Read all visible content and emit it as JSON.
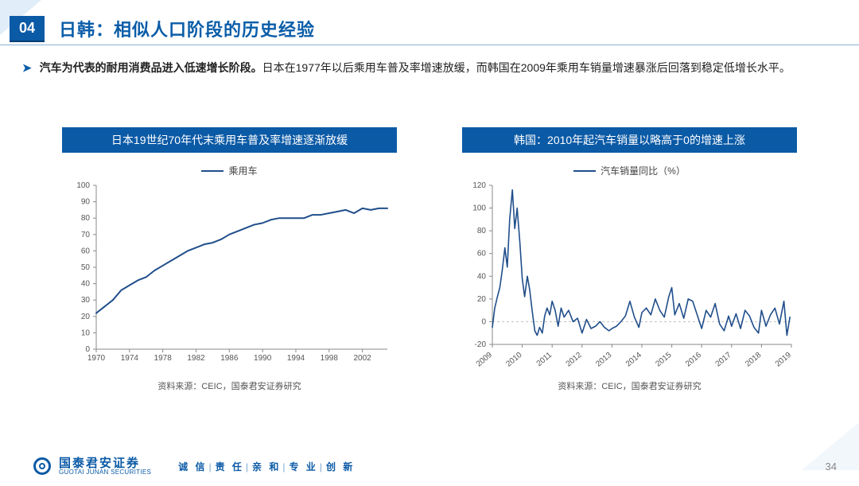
{
  "header": {
    "badge": "04",
    "title": "日韩：相似人口阶段的历史经验"
  },
  "lead": {
    "arrow": "➤",
    "bold": "汽车为代表的耐用消费品进入低速增长阶段。",
    "rest": "日本在1977年以后乘用车普及率增速放缓，而韩国在2009年乘用车销量增速暴涨后回落到稳定低增长水平。"
  },
  "chart_left": {
    "type": "line",
    "panel_title": "日本19世纪70年代末乘用车普及率增速逐渐放缓",
    "legend_label": "乘用车",
    "source": "资料来源：CEIC，国泰君安证券研究",
    "x_start": 1970,
    "x_end": 2005,
    "x_tick_step": 4,
    "y_start": 0,
    "y_end": 100,
    "y_tick_step": 10,
    "line_color": "#204e8b",
    "line_width": 2,
    "axis_color": "#888888",
    "grid": false,
    "tick_font_size": 10,
    "series": [
      {
        "x": 1970,
        "y": 22
      },
      {
        "x": 1971,
        "y": 26
      },
      {
        "x": 1972,
        "y": 30
      },
      {
        "x": 1973,
        "y": 36
      },
      {
        "x": 1974,
        "y": 39
      },
      {
        "x": 1975,
        "y": 42
      },
      {
        "x": 1976,
        "y": 44
      },
      {
        "x": 1977,
        "y": 48
      },
      {
        "x": 1978,
        "y": 51
      },
      {
        "x": 1979,
        "y": 54
      },
      {
        "x": 1980,
        "y": 57
      },
      {
        "x": 1981,
        "y": 60
      },
      {
        "x": 1982,
        "y": 62
      },
      {
        "x": 1983,
        "y": 64
      },
      {
        "x": 1984,
        "y": 65
      },
      {
        "x": 1985,
        "y": 67
      },
      {
        "x": 1986,
        "y": 70
      },
      {
        "x": 1987,
        "y": 72
      },
      {
        "x": 1988,
        "y": 74
      },
      {
        "x": 1989,
        "y": 76
      },
      {
        "x": 1990,
        "y": 77
      },
      {
        "x": 1991,
        "y": 79
      },
      {
        "x": 1992,
        "y": 80
      },
      {
        "x": 1993,
        "y": 80
      },
      {
        "x": 1994,
        "y": 80
      },
      {
        "x": 1995,
        "y": 80
      },
      {
        "x": 1996,
        "y": 82
      },
      {
        "x": 1997,
        "y": 82
      },
      {
        "x": 1998,
        "y": 83
      },
      {
        "x": 1999,
        "y": 84
      },
      {
        "x": 2000,
        "y": 85
      },
      {
        "x": 2001,
        "y": 83
      },
      {
        "x": 2002,
        "y": 86
      },
      {
        "x": 2003,
        "y": 85
      },
      {
        "x": 2004,
        "y": 86
      },
      {
        "x": 2005,
        "y": 86
      }
    ]
  },
  "chart_right": {
    "type": "line",
    "panel_title": "韩国：2010年起汽车销量以略高于0的增速上涨",
    "legend_label": "汽车销量同比（%）",
    "source": "资料来源：CEIC，国泰君安证券研究",
    "x_start": 2009,
    "x_end": 2019,
    "x_tick_step": 1,
    "y_start": -20,
    "y_end": 120,
    "y_tick_step": 20,
    "line_color": "#204e8b",
    "line_width": 1.6,
    "axis_color": "#888888",
    "zero_line_color": "#bfbfbf",
    "zero_dash": "3,3",
    "tick_font_size": 10,
    "x_label_rotate": -40,
    "series": [
      {
        "x": 2009.0,
        "y": -5
      },
      {
        "x": 2009.08,
        "y": 12
      },
      {
        "x": 2009.17,
        "y": 22
      },
      {
        "x": 2009.25,
        "y": 30
      },
      {
        "x": 2009.33,
        "y": 45
      },
      {
        "x": 2009.42,
        "y": 65
      },
      {
        "x": 2009.5,
        "y": 48
      },
      {
        "x": 2009.58,
        "y": 90
      },
      {
        "x": 2009.67,
        "y": 116
      },
      {
        "x": 2009.75,
        "y": 82
      },
      {
        "x": 2009.83,
        "y": 100
      },
      {
        "x": 2009.92,
        "y": 70
      },
      {
        "x": 2010.0,
        "y": 38
      },
      {
        "x": 2010.08,
        "y": 22
      },
      {
        "x": 2010.17,
        "y": 40
      },
      {
        "x": 2010.25,
        "y": 28
      },
      {
        "x": 2010.33,
        "y": 10
      },
      {
        "x": 2010.42,
        "y": -8
      },
      {
        "x": 2010.5,
        "y": -12
      },
      {
        "x": 2010.58,
        "y": -5
      },
      {
        "x": 2010.67,
        "y": -10
      },
      {
        "x": 2010.75,
        "y": 5
      },
      {
        "x": 2010.83,
        "y": 12
      },
      {
        "x": 2010.92,
        "y": 6
      },
      {
        "x": 2011.0,
        "y": 18
      },
      {
        "x": 2011.1,
        "y": 10
      },
      {
        "x": 2011.2,
        "y": -4
      },
      {
        "x": 2011.3,
        "y": 12
      },
      {
        "x": 2011.4,
        "y": 4
      },
      {
        "x": 2011.55,
        "y": 10
      },
      {
        "x": 2011.7,
        "y": 0
      },
      {
        "x": 2011.85,
        "y": 3
      },
      {
        "x": 2012.0,
        "y": -10
      },
      {
        "x": 2012.15,
        "y": 2
      },
      {
        "x": 2012.3,
        "y": -6
      },
      {
        "x": 2012.45,
        "y": -4
      },
      {
        "x": 2012.6,
        "y": 0
      },
      {
        "x": 2012.75,
        "y": -5
      },
      {
        "x": 2012.9,
        "y": -8
      },
      {
        "x": 2013.0,
        "y": -6
      },
      {
        "x": 2013.15,
        "y": -4
      },
      {
        "x": 2013.3,
        "y": 0
      },
      {
        "x": 2013.45,
        "y": 5
      },
      {
        "x": 2013.6,
        "y": 18
      },
      {
        "x": 2013.75,
        "y": 4
      },
      {
        "x": 2013.9,
        "y": -5
      },
      {
        "x": 2014.0,
        "y": 8
      },
      {
        "x": 2014.15,
        "y": 12
      },
      {
        "x": 2014.3,
        "y": 6
      },
      {
        "x": 2014.45,
        "y": 20
      },
      {
        "x": 2014.6,
        "y": 10
      },
      {
        "x": 2014.75,
        "y": 4
      },
      {
        "x": 2014.9,
        "y": 22
      },
      {
        "x": 2015.0,
        "y": 30
      },
      {
        "x": 2015.1,
        "y": 6
      },
      {
        "x": 2015.25,
        "y": 16
      },
      {
        "x": 2015.4,
        "y": 3
      },
      {
        "x": 2015.55,
        "y": 20
      },
      {
        "x": 2015.7,
        "y": 18
      },
      {
        "x": 2015.85,
        "y": 6
      },
      {
        "x": 2016.0,
        "y": -6
      },
      {
        "x": 2016.15,
        "y": 10
      },
      {
        "x": 2016.3,
        "y": 4
      },
      {
        "x": 2016.45,
        "y": 16
      },
      {
        "x": 2016.6,
        "y": -2
      },
      {
        "x": 2016.75,
        "y": -8
      },
      {
        "x": 2016.9,
        "y": 5
      },
      {
        "x": 2017.0,
        "y": -4
      },
      {
        "x": 2017.15,
        "y": 7
      },
      {
        "x": 2017.3,
        "y": -6
      },
      {
        "x": 2017.45,
        "y": 10
      },
      {
        "x": 2017.6,
        "y": 5
      },
      {
        "x": 2017.75,
        "y": -5
      },
      {
        "x": 2017.9,
        "y": -10
      },
      {
        "x": 2018.0,
        "y": 10
      },
      {
        "x": 2018.15,
        "y": -4
      },
      {
        "x": 2018.3,
        "y": 6
      },
      {
        "x": 2018.45,
        "y": 12
      },
      {
        "x": 2018.6,
        "y": -2
      },
      {
        "x": 2018.75,
        "y": 18
      },
      {
        "x": 2018.85,
        "y": -12
      },
      {
        "x": 2018.95,
        "y": 4
      }
    ]
  },
  "footer": {
    "brand_cn": "国泰君安证券",
    "brand_en": "GUOTAI JUNAN SECURITIES",
    "values": [
      "诚 信",
      "责 任",
      "亲 和",
      "专 业",
      "创 新"
    ],
    "page": "34"
  }
}
